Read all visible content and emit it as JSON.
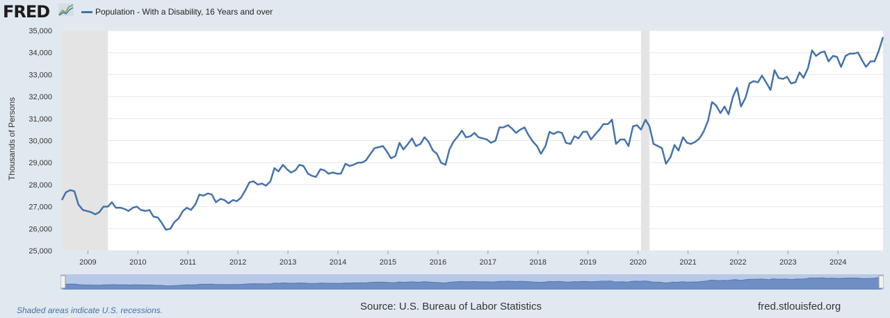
{
  "logo": {
    "text": "FRED"
  },
  "colors": {
    "series": "#4572a7",
    "recession": "#e4e4e4",
    "background": "#e1e9f0"
  },
  "chart_data": {
    "type": "line",
    "title": "",
    "xlabel": "",
    "ylabel": "Thousands of Persons",
    "ylim": [
      25000,
      35000
    ],
    "yticks": [
      25000,
      26000,
      27000,
      28000,
      29000,
      30000,
      31000,
      32000,
      33000,
      34000,
      35000
    ],
    "ytick_labels": [
      "25,000",
      "26,000",
      "27,000",
      "28,000",
      "29,000",
      "30,000",
      "31,000",
      "32,000",
      "33,000",
      "34,000",
      "35,000"
    ],
    "xlim": [
      2008.5,
      2024.92
    ],
    "xticks": [
      "2009",
      "2010",
      "2011",
      "2012",
      "2013",
      "2014",
      "2015",
      "2016",
      "2017",
      "2018",
      "2019",
      "2020",
      "2021",
      "2022",
      "2023",
      "2024"
    ],
    "recessions": [
      [
        2008.5,
        2009.42
      ],
      [
        2020.08,
        2020.25
      ]
    ],
    "series": [
      {
        "name": "Population - With a Disability, 16 Years and over",
        "x": [
          2008.5,
          2008.58,
          2008.67,
          2008.75,
          2008.83,
          2008.92,
          2009.0,
          2009.08,
          2009.17,
          2009.25,
          2009.33,
          2009.42,
          2009.5,
          2009.58,
          2009.67,
          2009.75,
          2009.83,
          2009.92,
          2010.0,
          2010.08,
          2010.17,
          2010.25,
          2010.33,
          2010.42,
          2010.5,
          2010.58,
          2010.67,
          2010.75,
          2010.83,
          2010.92,
          2011.0,
          2011.08,
          2011.17,
          2011.25,
          2011.33,
          2011.42,
          2011.5,
          2011.58,
          2011.67,
          2011.75,
          2011.83,
          2011.92,
          2012.0,
          2012.08,
          2012.17,
          2012.25,
          2012.33,
          2012.42,
          2012.5,
          2012.58,
          2012.67,
          2012.75,
          2012.83,
          2012.92,
          2013.0,
          2013.08,
          2013.17,
          2013.25,
          2013.33,
          2013.42,
          2013.5,
          2013.58,
          2013.67,
          2013.75,
          2013.83,
          2013.92,
          2014.0,
          2014.08,
          2014.17,
          2014.25,
          2014.33,
          2014.42,
          2014.5,
          2014.58,
          2014.67,
          2014.75,
          2014.83,
          2014.92,
          2015.0,
          2015.08,
          2015.17,
          2015.25,
          2015.33,
          2015.42,
          2015.5,
          2015.58,
          2015.67,
          2015.75,
          2015.83,
          2015.92,
          2016.0,
          2016.08,
          2016.17,
          2016.25,
          2016.33,
          2016.42,
          2016.5,
          2016.58,
          2016.67,
          2016.75,
          2016.83,
          2016.92,
          2017.0,
          2017.08,
          2017.17,
          2017.25,
          2017.33,
          2017.42,
          2017.5,
          2017.58,
          2017.67,
          2017.75,
          2017.83,
          2017.92,
          2018.0,
          2018.08,
          2018.17,
          2018.25,
          2018.33,
          2018.42,
          2018.5,
          2018.58,
          2018.67,
          2018.75,
          2018.83,
          2018.92,
          2019.0,
          2019.08,
          2019.17,
          2019.25,
          2019.33,
          2019.42,
          2019.5,
          2019.58,
          2019.67,
          2019.75,
          2019.83,
          2019.92,
          2020.0,
          2020.08,
          2020.17,
          2020.25,
          2020.33,
          2020.42,
          2020.5,
          2020.58,
          2020.67,
          2020.75,
          2020.83,
          2020.92,
          2021.0,
          2021.08,
          2021.17,
          2021.25,
          2021.33,
          2021.42,
          2021.5,
          2021.58,
          2021.67,
          2021.75,
          2021.83,
          2021.92,
          2022.0,
          2022.08,
          2022.17,
          2022.25,
          2022.33,
          2022.42,
          2022.5,
          2022.58,
          2022.67,
          2022.75,
          2022.83,
          2022.92,
          2023.0,
          2023.08,
          2023.17,
          2023.25,
          2023.33,
          2023.42,
          2023.5,
          2023.58,
          2023.67,
          2023.75,
          2023.83,
          2023.92,
          2024.0,
          2024.08,
          2024.17,
          2024.25,
          2024.33,
          2024.42,
          2024.5,
          2024.58,
          2024.67,
          2024.75,
          2024.83,
          2024.92
        ],
        "values": [
          27300,
          27650,
          27750,
          27700,
          27100,
          26850,
          26800,
          26750,
          26650,
          26750,
          27000,
          27000,
          27200,
          26950,
          26950,
          26900,
          26800,
          26950,
          27000,
          26850,
          26800,
          26850,
          26550,
          26500,
          26250,
          25950,
          26000,
          26300,
          26450,
          26800,
          26950,
          26850,
          27100,
          27550,
          27500,
          27600,
          27550,
          27200,
          27350,
          27300,
          27150,
          27300,
          27250,
          27400,
          27750,
          28100,
          28150,
          28000,
          28050,
          27950,
          28150,
          28750,
          28600,
          28900,
          28700,
          28550,
          28650,
          28900,
          28850,
          28500,
          28400,
          28350,
          28700,
          28650,
          28500,
          28550,
          28500,
          28500,
          28950,
          28850,
          28900,
          29000,
          29000,
          29100,
          29400,
          29650,
          29700,
          29750,
          29500,
          29200,
          29300,
          29900,
          29600,
          29850,
          30100,
          29750,
          29850,
          30150,
          29950,
          29550,
          29400,
          29000,
          28900,
          29600,
          29950,
          30200,
          30450,
          30150,
          30200,
          30350,
          30150,
          30100,
          30050,
          29900,
          30000,
          30600,
          30600,
          30700,
          30550,
          30350,
          30500,
          30600,
          30250,
          29950,
          29750,
          29400,
          29750,
          30400,
          30300,
          30400,
          30350,
          29900,
          29850,
          30200,
          30100,
          30400,
          30400,
          30050,
          30300,
          30500,
          30750,
          30750,
          30950,
          29850,
          30050,
          30050,
          29750,
          30650,
          30700,
          30500,
          30950,
          30650,
          29850,
          29750,
          29650,
          28950,
          29250,
          29800,
          29550,
          30150,
          29900,
          29850,
          29950,
          30100,
          30400,
          30900,
          31750,
          31600,
          31250,
          31550,
          31200,
          32000,
          32400,
          31550,
          31950,
          32600,
          32700,
          32650,
          32950,
          32650,
          32300,
          33200,
          32850,
          32800,
          32900,
          32600,
          32650,
          33100,
          32850,
          33300,
          34100,
          33850,
          34000,
          34050,
          33600,
          33850,
          33800,
          33350,
          33850,
          33950,
          33950,
          34000,
          33650,
          33350,
          33600,
          33600,
          34050,
          34700
        ]
      }
    ]
  },
  "footer": {
    "recession_note": "Shaded areas indicate U.S. recessions.",
    "source": "Source: U.S. Bureau of Labor Statistics",
    "site": "fred.stlouisfed.org"
  }
}
